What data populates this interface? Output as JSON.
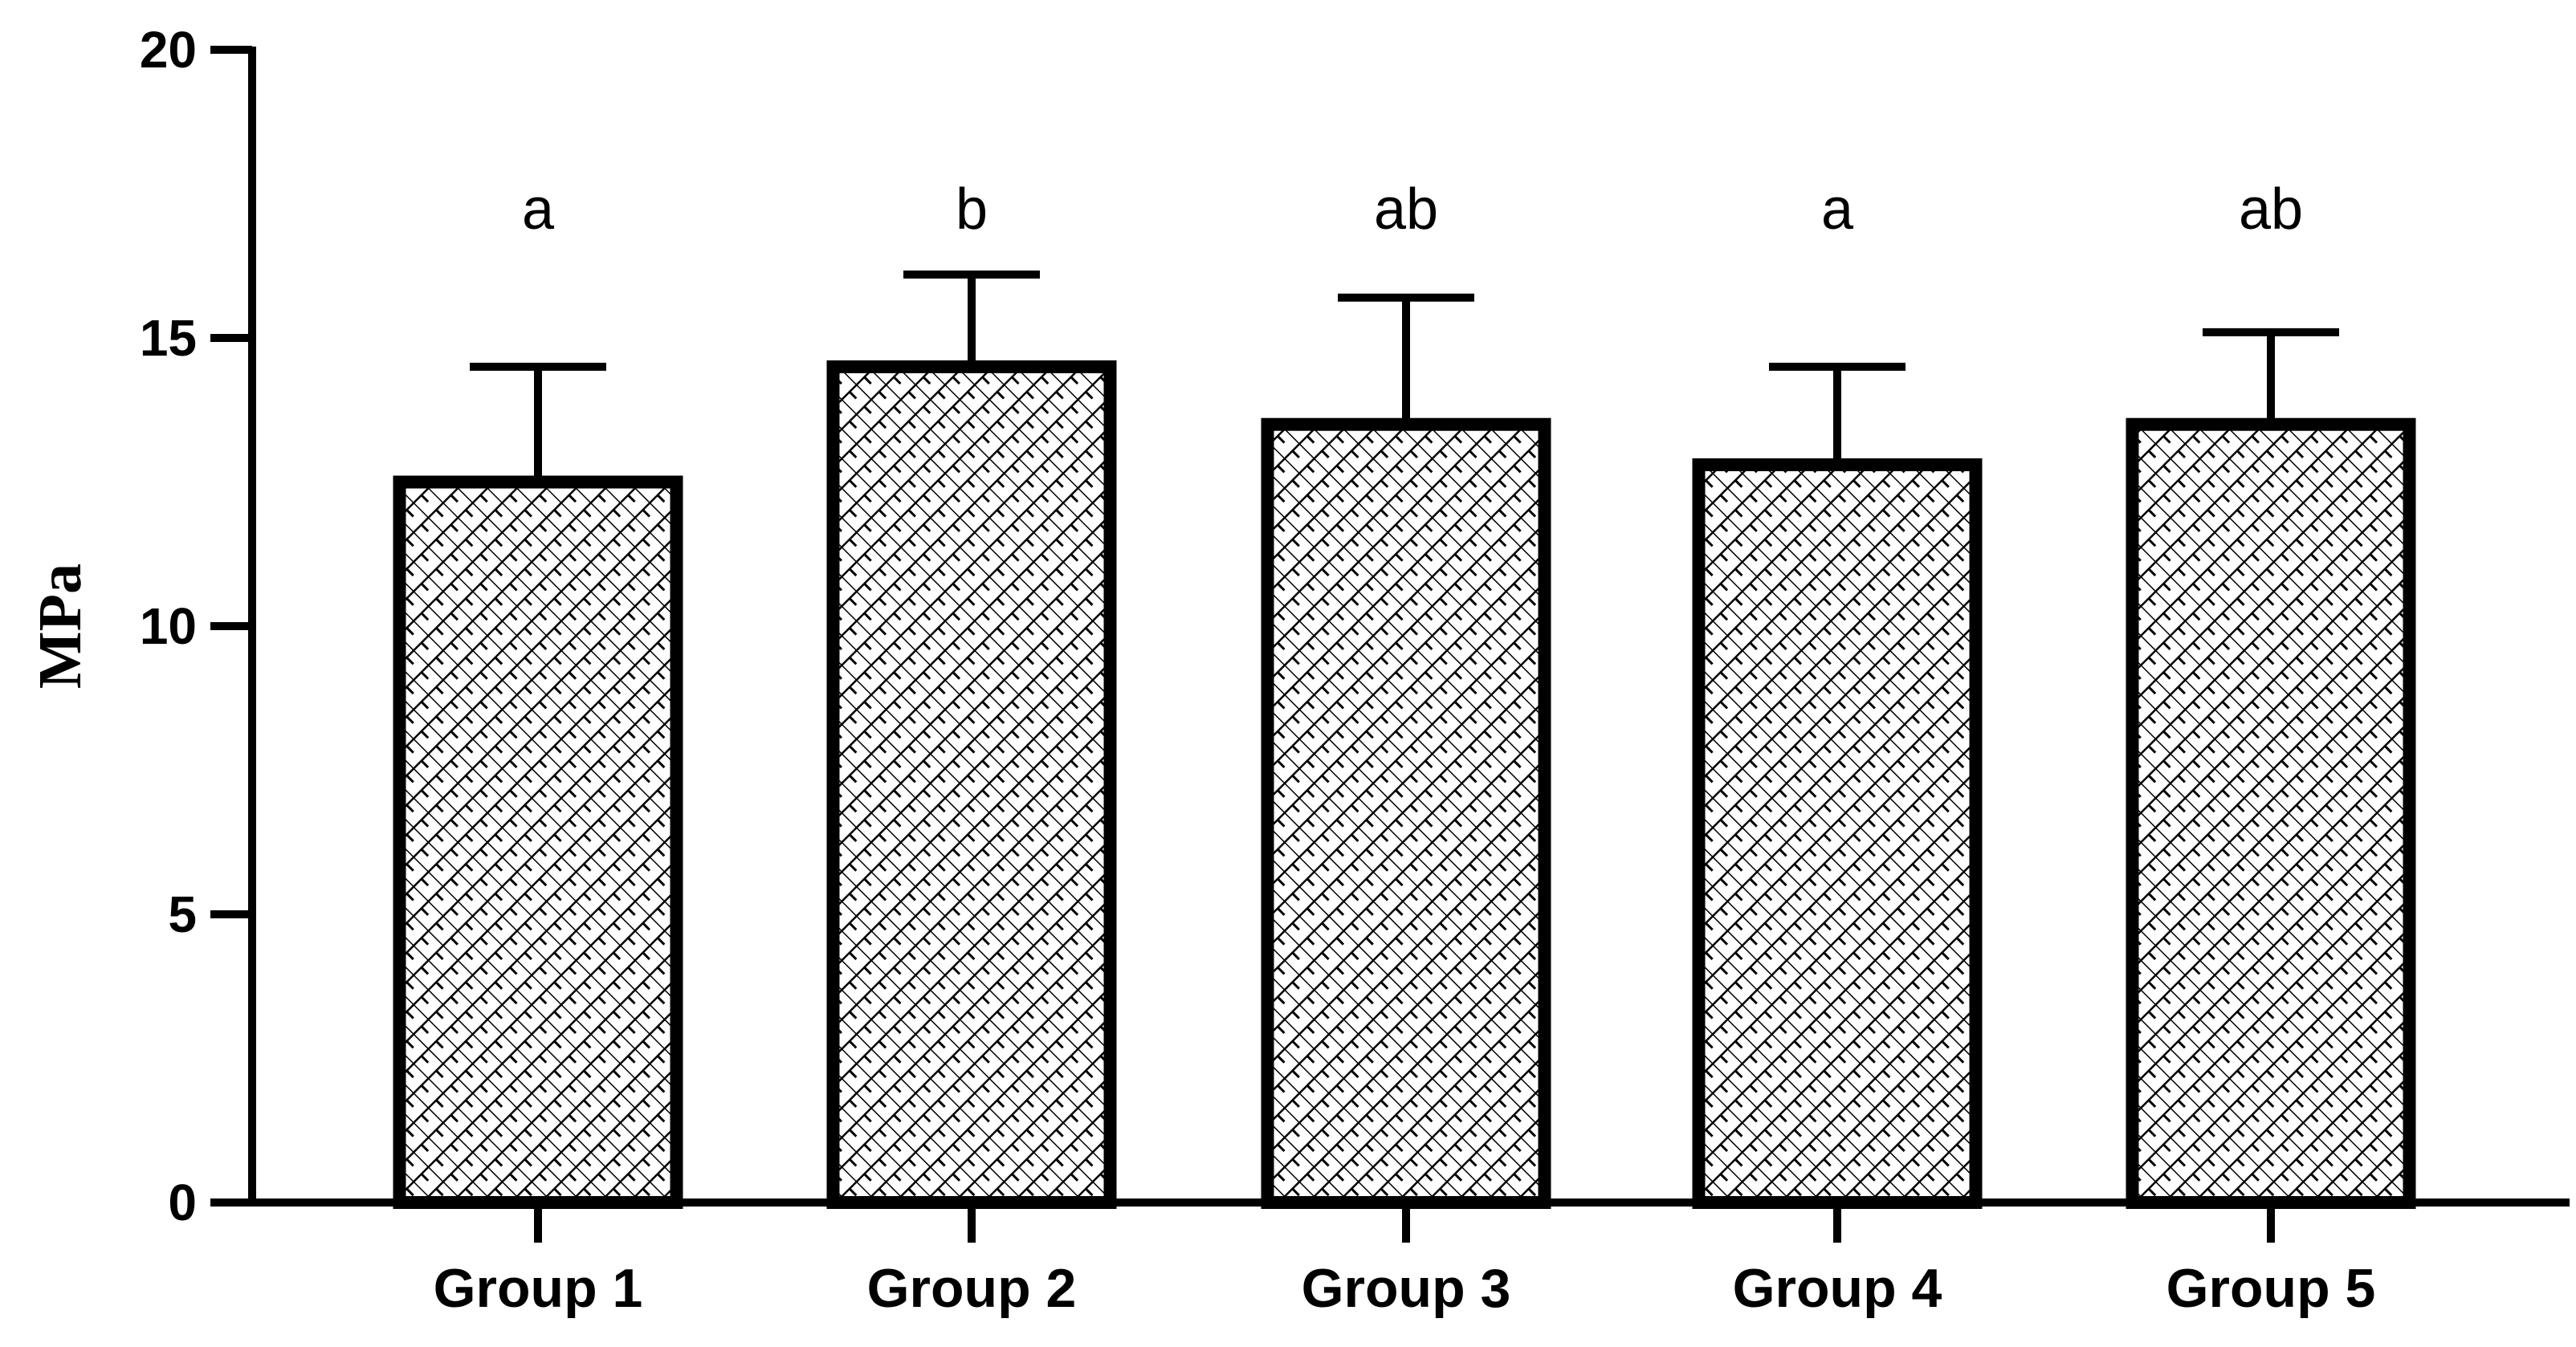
{
  "chart_data": {
    "type": "bar",
    "title": "",
    "xlabel": "",
    "ylabel": "MPa",
    "ylim": [
      0,
      20
    ],
    "yticks": [
      0,
      5,
      10,
      15,
      20
    ],
    "categories": [
      "Group 1",
      "Group 2",
      "Group 3",
      "Group 4",
      "Group 5"
    ],
    "values": [
      12.5,
      14.5,
      13.5,
      12.8,
      13.5
    ],
    "error_upper": [
      2.0,
      1.6,
      2.2,
      1.7,
      1.6
    ],
    "significance_labels": [
      "a",
      "b",
      "ab",
      "a",
      "ab"
    ],
    "grid": false,
    "legend": "none",
    "bar_fill": "crosshatch pattern",
    "colors": {
      "bar_edge": "#000000",
      "pattern": "#000000",
      "background": "#ffffff"
    }
  }
}
